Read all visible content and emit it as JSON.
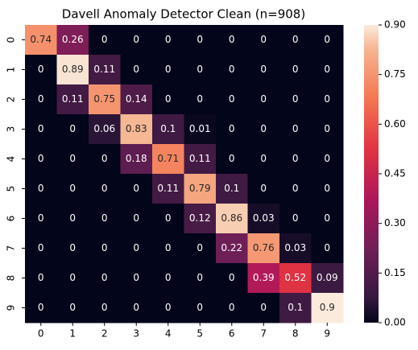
{
  "chart_data": {
    "type": "heatmap",
    "title": "Davell Anomaly Detector Clean (n=908)",
    "x": [
      "0",
      "1",
      "2",
      "3",
      "4",
      "5",
      "6",
      "7",
      "8",
      "9"
    ],
    "y": [
      "0",
      "1",
      "2",
      "3",
      "4",
      "5",
      "6",
      "7",
      "8",
      "9"
    ],
    "values": [
      [
        0.74,
        0.26,
        0,
        0,
        0,
        0,
        0,
        0,
        0,
        0
      ],
      [
        0,
        0.89,
        0.11,
        0,
        0,
        0,
        0,
        0,
        0,
        0
      ],
      [
        0,
        0.11,
        0.75,
        0.14,
        0,
        0,
        0,
        0,
        0,
        0
      ],
      [
        0,
        0,
        0.06,
        0.83,
        0.1,
        0.01,
        0,
        0,
        0,
        0
      ],
      [
        0,
        0,
        0,
        0.18,
        0.71,
        0.11,
        0,
        0,
        0,
        0
      ],
      [
        0,
        0,
        0,
        0,
        0.11,
        0.79,
        0.1,
        0,
        0,
        0
      ],
      [
        0,
        0,
        0,
        0,
        0,
        0.12,
        0.86,
        0.03,
        0,
        0
      ],
      [
        0,
        0,
        0,
        0,
        0,
        0,
        0.22,
        0.76,
        0.03,
        0
      ],
      [
        0,
        0,
        0,
        0,
        0,
        0,
        0,
        0.39,
        0.52,
        0.09
      ],
      [
        0,
        0,
        0,
        0,
        0,
        0,
        0,
        0,
        0.1,
        0.9
      ]
    ],
    "colormap": "rocket",
    "zlim": [
      0,
      0.9
    ],
    "zticks": [
      {
        "value": 0,
        "label": "0.00"
      },
      {
        "value": 0.15,
        "label": "0.15"
      },
      {
        "value": 0.3,
        "label": "0.30"
      },
      {
        "value": 0.45,
        "label": "0.45"
      },
      {
        "value": 0.6,
        "label": "0.60"
      },
      {
        "value": 0.75,
        "label": "0.75"
      },
      {
        "value": 0.9,
        "label": "0.90"
      }
    ]
  }
}
